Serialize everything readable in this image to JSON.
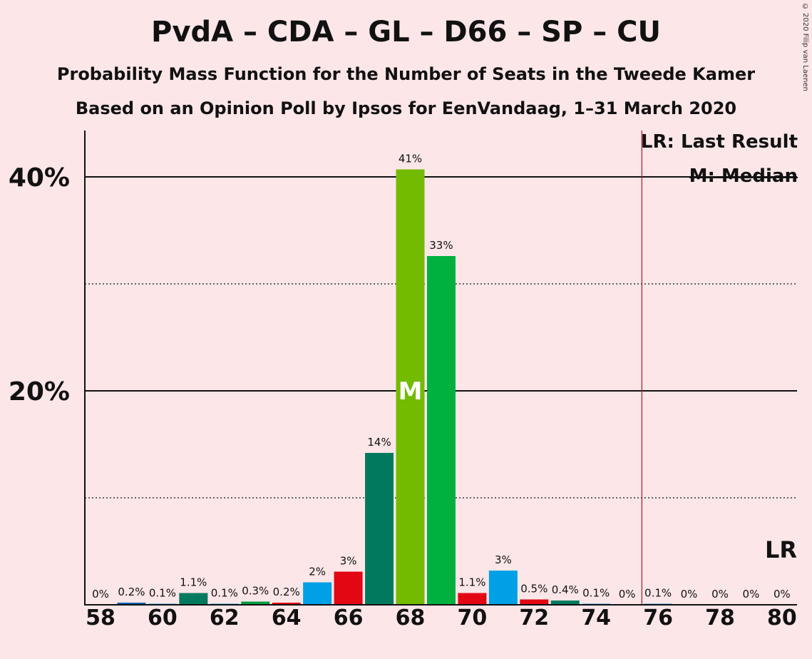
{
  "title": "PvdA – CDA – GL – D66 – SP – CU",
  "subtitle": "Probability Mass Function for the Number of Seats in the Tweede Kamer",
  "subtitle2": "Based on an Opinion Poll by Ipsos for EenVandaag, 1–31 March 2020",
  "copyright": "© 2020 Filip van Laenen",
  "legend": {
    "lr": "LR: Last Result",
    "median": "M: Median"
  },
  "chart_data": {
    "type": "bar",
    "categories": [
      58,
      59,
      60,
      61,
      62,
      63,
      64,
      65,
      66,
      67,
      68,
      69,
      70,
      71,
      72,
      73,
      74,
      75,
      76,
      77,
      78,
      79,
      80
    ],
    "values": [
      0,
      0.2,
      0.1,
      1.1,
      0.1,
      0.3,
      0.2,
      2.1,
      3.1,
      14.2,
      40.7,
      32.6,
      1.1,
      3.2,
      0.5,
      0.4,
      0.1,
      0,
      0.1,
      0,
      0,
      0,
      0
    ],
    "labels": [
      "0%",
      "0.2%",
      "0.1%",
      "1.1%",
      "0.1%",
      "0.3%",
      "0.2%",
      "2%",
      "3%",
      "14%",
      "41%",
      "33%",
      "1.1%",
      "3%",
      "0.5%",
      "0.4%",
      "0.1%",
      "0%",
      "0.1%",
      "0%",
      "0%",
      "0%",
      "0%"
    ],
    "colors": [
      "#00a0e6",
      "#005fae",
      "#00a0e6",
      "#007a5e",
      "#00a0e6",
      "#00a040",
      "#e30613",
      "#00a0e6",
      "#e30613",
      "#007a5e",
      "#73bb00",
      "#00b140",
      "#e30613",
      "#00a0e6",
      "#e30613",
      "#007a5e",
      "#00a0e6",
      "#00a0e6",
      "#00a0e6",
      "#00a0e6",
      "#00a0e6",
      "#00a0e6",
      "#00a0e6"
    ],
    "xticks": [
      58,
      60,
      62,
      64,
      66,
      68,
      70,
      72,
      74,
      76,
      78,
      80
    ],
    "yticks": [
      {
        "value": 20,
        "label": "20%"
      },
      {
        "value": 40,
        "label": "40%"
      }
    ],
    "ygrid_dotted": [
      10,
      30
    ],
    "ylim": [
      0,
      44.3
    ],
    "median": 68,
    "median_label": "M",
    "last_result": 76,
    "last_result_label": "LR"
  }
}
